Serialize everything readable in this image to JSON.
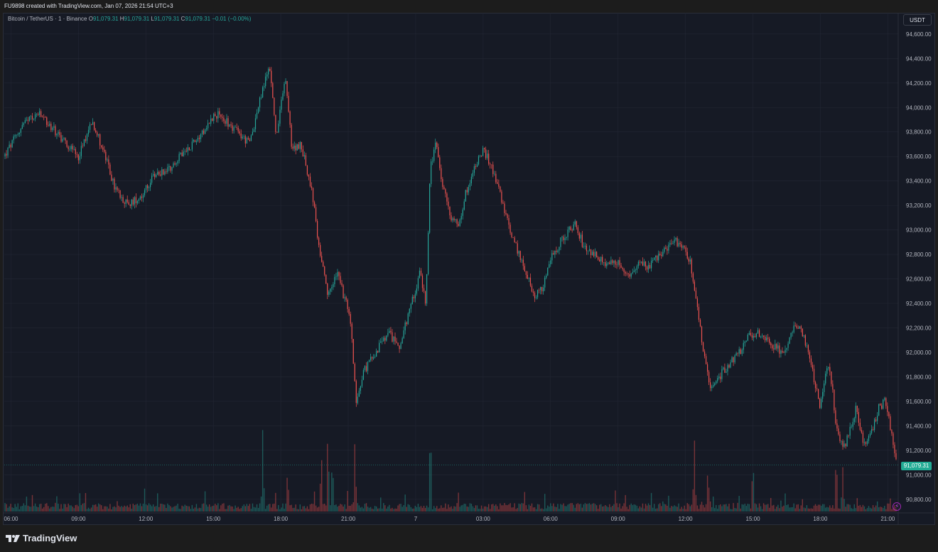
{
  "header": {
    "credit": "FU9898 created with TradingView.com, Jan 07, 2026 21:54 UTC+3"
  },
  "legend": {
    "symbol": "Bitcoin / TetherUS · 1 · Binance",
    "o_label": "O",
    "o_value": "91,079.31",
    "h_label": "H",
    "h_value": "91,079.31",
    "l_label": "L",
    "l_value": "91,079.31",
    "c_label": "C",
    "c_value": "91,079.31",
    "change": "−0.01 (−0.00%)"
  },
  "toolbar": {
    "currency": "USDT"
  },
  "last_price_label": "91,079.31",
  "brand": {
    "name": "TradingView"
  },
  "colors": {
    "up": "#26a69a",
    "down": "#ef5350",
    "background": "#161a25",
    "grid": "#232734",
    "axis_text": "#b2b5be",
    "last_price": "#22ab94"
  },
  "chart_data": {
    "type": "candlestick",
    "title": "",
    "symbol": "BTCUSDT",
    "interval": "1 minute",
    "currency": "USDT",
    "ylim": [
      90700,
      94750
    ],
    "y_ticks": [
      90800,
      91000,
      91200,
      91400,
      91600,
      91800,
      92000,
      92200,
      92400,
      92600,
      92800,
      93000,
      93200,
      93400,
      93600,
      93800,
      94000,
      94200,
      94400,
      94600
    ],
    "y_tick_labels": [
      "90,800.00",
      "91,000.00",
      "91,200.00",
      "91,400.00",
      "91,600.00",
      "91,800.00",
      "92,000.00",
      "92,200.00",
      "92,400.00",
      "92,600.00",
      "92,800.00",
      "93,000.00",
      "93,200.00",
      "93,400.00",
      "93,600.00",
      "93,800.00",
      "94,000.00",
      "94,200.00",
      "94,400.00",
      "94,600.00"
    ],
    "x_range_hours": [
      5.7,
      45.4
    ],
    "x_ticks": [
      {
        "h": 6,
        "label": "06:00"
      },
      {
        "h": 9,
        "label": "09:00"
      },
      {
        "h": 12,
        "label": "12:00"
      },
      {
        "h": 15,
        "label": "15:00"
      },
      {
        "h": 18,
        "label": "18:00"
      },
      {
        "h": 21,
        "label": "21:00"
      },
      {
        "h": 24,
        "label": "7"
      },
      {
        "h": 27,
        "label": "03:00"
      },
      {
        "h": 30,
        "label": "06:00"
      },
      {
        "h": 33,
        "label": "09:00"
      },
      {
        "h": 36,
        "label": "12:00"
      },
      {
        "h": 39,
        "label": "15:00"
      },
      {
        "h": 42,
        "label": "18:00"
      },
      {
        "h": 45,
        "label": "21:00"
      }
    ],
    "last_price": 91079.31,
    "price_path": [
      {
        "h": 5.7,
        "p": 93600
      },
      {
        "h": 6.5,
        "p": 93850
      },
      {
        "h": 7.2,
        "p": 93950
      },
      {
        "h": 8.0,
        "p": 93800
      },
      {
        "h": 9.0,
        "p": 93600
      },
      {
        "h": 9.6,
        "p": 93900
      },
      {
        "h": 10.1,
        "p": 93650
      },
      {
        "h": 10.6,
        "p": 93350
      },
      {
        "h": 11.2,
        "p": 93200
      },
      {
        "h": 11.9,
        "p": 93300
      },
      {
        "h": 12.4,
        "p": 93450
      },
      {
        "h": 13.0,
        "p": 93500
      },
      {
        "h": 13.8,
        "p": 93650
      },
      {
        "h": 14.5,
        "p": 93800
      },
      {
        "h": 15.1,
        "p": 93950
      },
      {
        "h": 15.8,
        "p": 93850
      },
      {
        "h": 16.6,
        "p": 93700
      },
      {
        "h": 17.2,
        "p": 94150
      },
      {
        "h": 17.5,
        "p": 94350
      },
      {
        "h": 17.8,
        "p": 93750
      },
      {
        "h": 18.2,
        "p": 94250
      },
      {
        "h": 18.5,
        "p": 93650
      },
      {
        "h": 18.9,
        "p": 93700
      },
      {
        "h": 19.4,
        "p": 93300
      },
      {
        "h": 19.7,
        "p": 92850
      },
      {
        "h": 20.1,
        "p": 92450
      },
      {
        "h": 20.5,
        "p": 92650
      },
      {
        "h": 20.9,
        "p": 92400
      },
      {
        "h": 21.1,
        "p": 92250
      },
      {
        "h": 21.35,
        "p": 91600
      },
      {
        "h": 21.7,
        "p": 91850
      },
      {
        "h": 22.2,
        "p": 92000
      },
      {
        "h": 22.8,
        "p": 92150
      },
      {
        "h": 23.3,
        "p": 92050
      },
      {
        "h": 23.8,
        "p": 92400
      },
      {
        "h": 24.2,
        "p": 92650
      },
      {
        "h": 24.45,
        "p": 92400
      },
      {
        "h": 24.65,
        "p": 93500
      },
      {
        "h": 24.9,
        "p": 93700
      },
      {
        "h": 25.2,
        "p": 93350
      },
      {
        "h": 25.6,
        "p": 93100
      },
      {
        "h": 25.9,
        "p": 93050
      },
      {
        "h": 26.3,
        "p": 93350
      },
      {
        "h": 26.7,
        "p": 93550
      },
      {
        "h": 27.0,
        "p": 93650
      },
      {
        "h": 27.3,
        "p": 93550
      },
      {
        "h": 27.7,
        "p": 93350
      },
      {
        "h": 28.1,
        "p": 93050
      },
      {
        "h": 28.5,
        "p": 92850
      },
      {
        "h": 28.9,
        "p": 92650
      },
      {
        "h": 29.3,
        "p": 92450
      },
      {
        "h": 29.7,
        "p": 92550
      },
      {
        "h": 30.1,
        "p": 92800
      },
      {
        "h": 30.6,
        "p": 92950
      },
      {
        "h": 31.1,
        "p": 93050
      },
      {
        "h": 31.5,
        "p": 92850
      },
      {
        "h": 32.0,
        "p": 92800
      },
      {
        "h": 32.5,
        "p": 92700
      },
      {
        "h": 33.0,
        "p": 92750
      },
      {
        "h": 33.5,
        "p": 92600
      },
      {
        "h": 33.9,
        "p": 92750
      },
      {
        "h": 34.4,
        "p": 92700
      },
      {
        "h": 34.9,
        "p": 92800
      },
      {
        "h": 35.4,
        "p": 92900
      },
      {
        "h": 35.8,
        "p": 92900
      },
      {
        "h": 36.2,
        "p": 92750
      },
      {
        "h": 36.5,
        "p": 92400
      },
      {
        "h": 36.8,
        "p": 92000
      },
      {
        "h": 37.1,
        "p": 91700
      },
      {
        "h": 37.5,
        "p": 91800
      },
      {
        "h": 37.9,
        "p": 91900
      },
      {
        "h": 38.4,
        "p": 92000
      },
      {
        "h": 38.9,
        "p": 92150
      },
      {
        "h": 39.4,
        "p": 92150
      },
      {
        "h": 39.9,
        "p": 92050
      },
      {
        "h": 40.4,
        "p": 92000
      },
      {
        "h": 40.9,
        "p": 92250
      },
      {
        "h": 41.3,
        "p": 92100
      },
      {
        "h": 41.7,
        "p": 91800
      },
      {
        "h": 42.0,
        "p": 91550
      },
      {
        "h": 42.3,
        "p": 91900
      },
      {
        "h": 42.5,
        "p": 91750
      },
      {
        "h": 42.7,
        "p": 91400
      },
      {
        "h": 43.0,
        "p": 91200
      },
      {
        "h": 43.3,
        "p": 91350
      },
      {
        "h": 43.6,
        "p": 91550
      },
      {
        "h": 43.9,
        "p": 91250
      },
      {
        "h": 44.2,
        "p": 91300
      },
      {
        "h": 44.6,
        "p": 91550
      },
      {
        "h": 44.9,
        "p": 91600
      },
      {
        "h": 45.2,
        "p": 91300
      },
      {
        "h": 45.4,
        "p": 91079
      }
    ],
    "volume_spikes": [
      {
        "h": 17.2,
        "v": 0.9
      },
      {
        "h": 18.3,
        "v": 0.6
      },
      {
        "h": 19.8,
        "v": 0.75
      },
      {
        "h": 20.1,
        "v": 1.0
      },
      {
        "h": 20.3,
        "v": 0.55
      },
      {
        "h": 21.3,
        "v": 0.8
      },
      {
        "h": 24.65,
        "v": 1.0
      },
      {
        "h": 36.4,
        "v": 0.7
      },
      {
        "h": 37.0,
        "v": 0.45
      },
      {
        "h": 39.0,
        "v": 0.55
      },
      {
        "h": 42.7,
        "v": 0.5
      },
      {
        "h": 43.0,
        "v": 0.6
      }
    ]
  }
}
